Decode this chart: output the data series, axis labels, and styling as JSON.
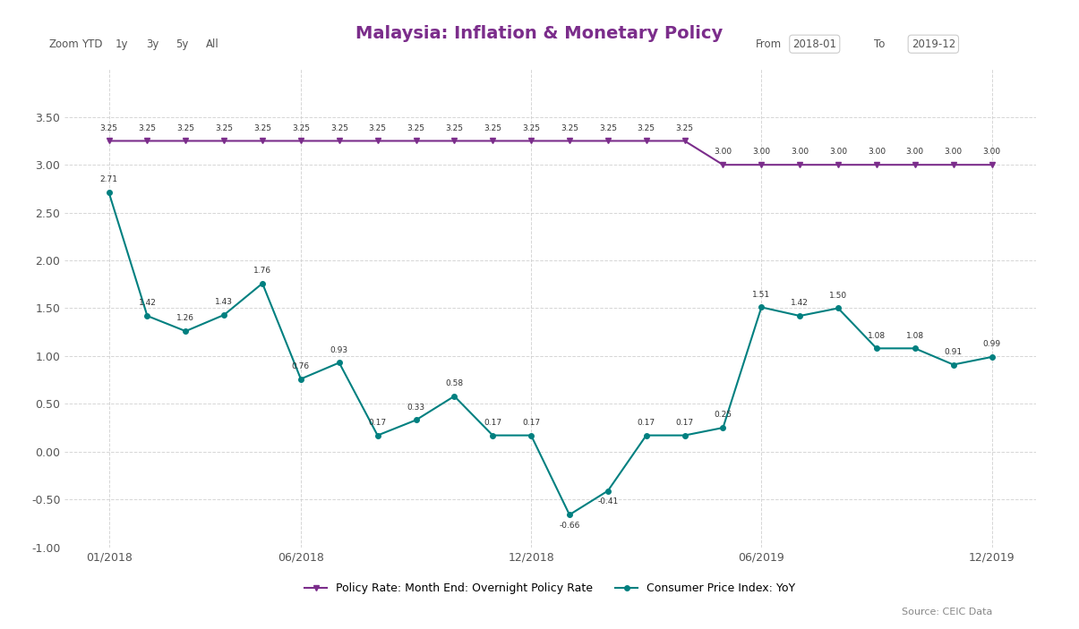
{
  "title": "Malaysia: Inflation & Monetary Policy",
  "title_color": "#7b2d8b",
  "bg_color": "#ffffff",
  "plot_bg_color": "#ffffff",
  "grid_color": "#cccccc",
  "x_labels": [
    "01/2018",
    "06/2018",
    "12/2018",
    "06/2019",
    "12/2019"
  ],
  "x_tick_positions": [
    0,
    5,
    11,
    17,
    23
  ],
  "ylim": [
    -1.0,
    4.0
  ],
  "yticks": [
    -1.0,
    -0.5,
    0.0,
    0.5,
    1.0,
    1.5,
    2.0,
    2.5,
    3.0,
    3.5
  ],
  "policy_rate": {
    "values": [
      3.25,
      3.25,
      3.25,
      3.25,
      3.25,
      3.25,
      3.25,
      3.25,
      3.25,
      3.25,
      3.25,
      3.25,
      3.25,
      3.25,
      3.25,
      3.25,
      3.0,
      3.0,
      3.0,
      3.0,
      3.0,
      3.0,
      3.0,
      3.0
    ],
    "color": "#7b2d8b",
    "label": "Policy Rate: Month End: Overnight Policy Rate",
    "linewidth": 1.5,
    "marker": "v",
    "markersize": 5
  },
  "cpi": {
    "values": [
      2.71,
      1.42,
      1.26,
      1.43,
      1.76,
      0.76,
      0.93,
      0.17,
      0.33,
      0.58,
      0.17,
      0.17,
      -0.66,
      -0.41,
      0.17,
      0.17,
      0.25,
      1.51,
      1.42,
      1.5,
      1.08,
      1.08,
      0.91,
      0.99
    ],
    "color": "#008080",
    "label": "Consumer Price Index: YoY",
    "linewidth": 1.5,
    "marker": "o",
    "markersize": 4
  },
  "months": 24,
  "source_text": "Source: CEIC Data",
  "zoom_buttons": [
    "YTD",
    "1y",
    "3y",
    "5y",
    "All"
  ],
  "from_label": "From",
  "from_value": "2018-01",
  "to_label": "To",
  "to_value": "2019-12"
}
